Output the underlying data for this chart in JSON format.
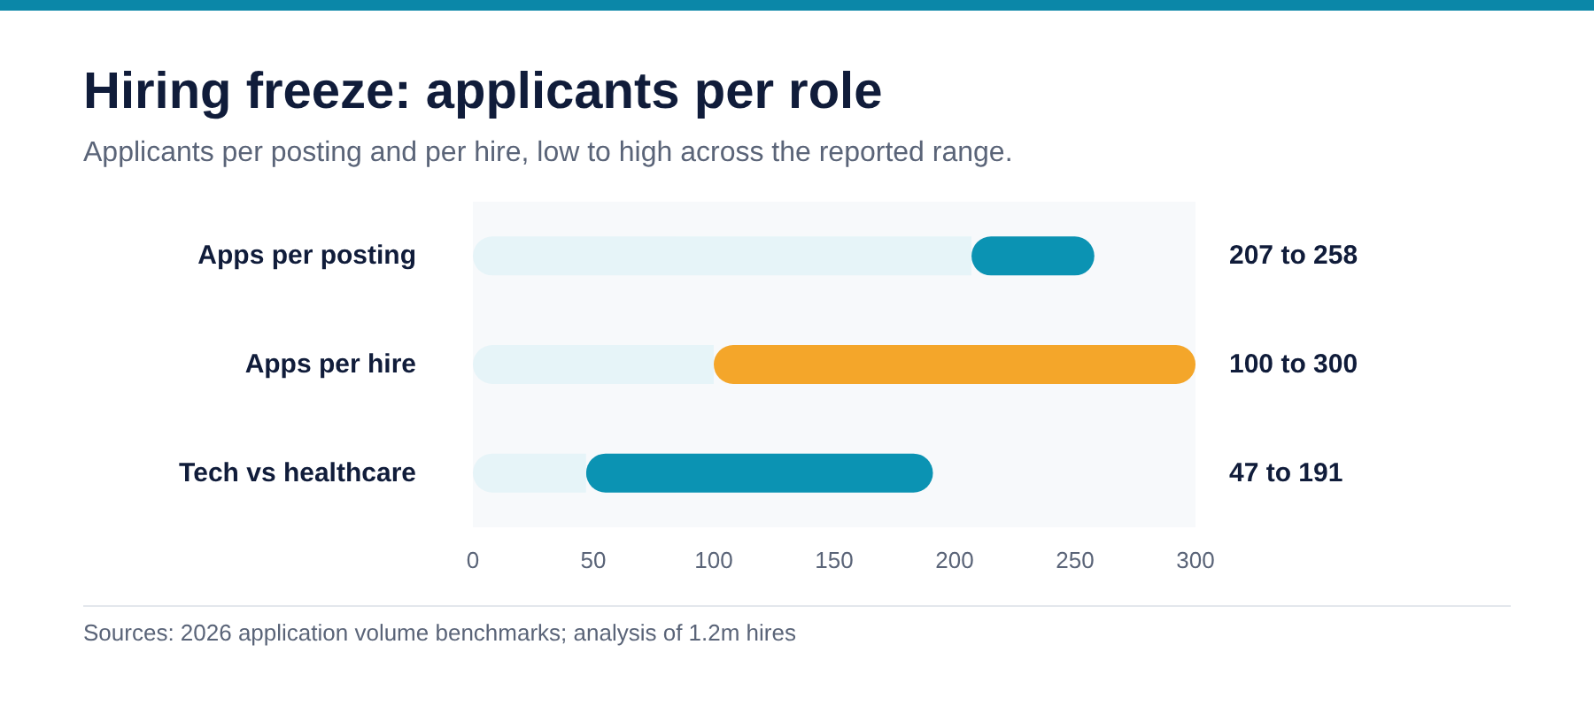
{
  "chart_data": {
    "type": "bar",
    "orientation": "horizontal",
    "stacked": true,
    "title": "Hiring freeze: applicants per role",
    "subtitle": "Applicants per posting and per hire, low to high across the reported range.",
    "categories": [
      "Apps per posting",
      "Apps per hire",
      "Tech vs healthcare"
    ],
    "series": [
      {
        "color": "#e6f4f8",
        "values": [
          207,
          100,
          47
        ]
      },
      {
        "colors": [
          "#0b93b3",
          "#f4a62a",
          "#0b93b3"
        ],
        "values": [
          51,
          200,
          144
        ]
      }
    ],
    "xlim": [
      0,
      300
    ],
    "xticks": [
      0,
      50,
      100,
      150,
      200,
      250,
      300
    ],
    "grid": false,
    "annotations": [
      "207 to 258",
      "100 to 300",
      "47 to 191",
      "Sources: 2026 application volume benchmarks; analysis of 1.2m hires"
    ]
  }
}
